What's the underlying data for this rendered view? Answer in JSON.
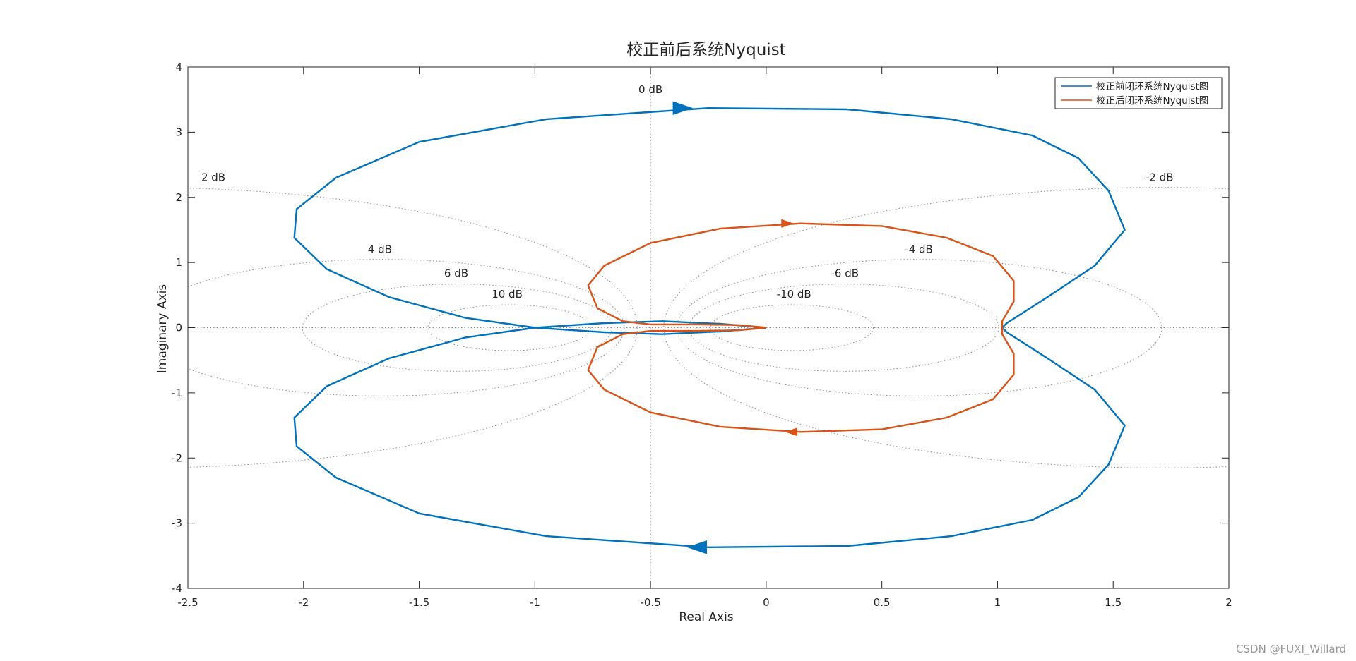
{
  "chart_data": {
    "type": "line",
    "subtype": "nyquist",
    "title": "校正前后系统Nyquist",
    "xlabel": "Real Axis",
    "ylabel": "Imaginary Axis",
    "xlim": [
      -2.5,
      2
    ],
    "ylim": [
      -4,
      4
    ],
    "xticks": [
      -2.5,
      -2,
      -1.5,
      -1,
      -0.5,
      0,
      0.5,
      1,
      1.5,
      2
    ],
    "xtick_labels": [
      "-2.5",
      "-2",
      "-1.5",
      "-1",
      "-0.5",
      "0",
      "0.5",
      "1",
      "1.5",
      "2"
    ],
    "yticks": [
      -4,
      -3,
      -2,
      -1,
      0,
      1,
      2,
      3,
      4
    ],
    "ytick_labels": [
      "-4",
      "-3",
      "-2",
      "-1",
      "0",
      "1",
      "2",
      "3",
      "4"
    ],
    "grid": "M-circles",
    "legend_position": "top-right",
    "m_circle_labels": [
      {
        "text": "0 dB",
        "db": 0,
        "x": -0.5,
        "y": 3.6
      },
      {
        "text": "2 dB",
        "db": 2,
        "x": -2.39,
        "y": 2.25
      },
      {
        "text": "-2 dB",
        "db": -2,
        "x": 1.7,
        "y": 2.25
      },
      {
        "text": "4 dB",
        "db": 4,
        "x": -1.67,
        "y": 1.15
      },
      {
        "text": "-4 dB",
        "db": -4,
        "x": 0.66,
        "y": 1.15
      },
      {
        "text": "6 dB",
        "db": 6,
        "x": -1.34,
        "y": 0.78
      },
      {
        "text": "-6 dB",
        "db": -6,
        "x": 0.34,
        "y": 0.78
      },
      {
        "text": "10 dB",
        "db": 10,
        "x": -1.12,
        "y": 0.46
      },
      {
        "text": "-10 dB",
        "db": -10,
        "x": 0.12,
        "y": 0.46
      }
    ],
    "series": [
      {
        "name": "校正前闭环系统Nyquist图",
        "color": "#0072BD",
        "points": [
          [
            0,
            0
          ],
          [
            -0.2,
            0.06
          ],
          [
            -0.45,
            0.1
          ],
          [
            -0.7,
            0.07
          ],
          [
            -1.0,
            0.0
          ],
          [
            -1.3,
            -0.15
          ],
          [
            -1.63,
            -0.47
          ],
          [
            -1.9,
            -0.9
          ],
          [
            -2.04,
            -1.38
          ],
          [
            -2.03,
            -1.82
          ],
          [
            -1.86,
            -2.3
          ],
          [
            -1.5,
            -2.85
          ],
          [
            -0.95,
            -3.2
          ],
          [
            -0.25,
            -3.37
          ],
          [
            0.35,
            -3.35
          ],
          [
            0.8,
            -3.2
          ],
          [
            1.15,
            -2.95
          ],
          [
            1.35,
            -2.6
          ],
          [
            1.48,
            -2.1
          ],
          [
            1.55,
            -1.5
          ],
          [
            1.42,
            -0.95
          ],
          [
            1.22,
            -0.48
          ],
          [
            1.04,
            -0.07
          ],
          [
            1.02,
            0.0
          ],
          [
            1.04,
            0.07
          ],
          [
            1.22,
            0.48
          ],
          [
            1.42,
            0.95
          ],
          [
            1.55,
            1.5
          ],
          [
            1.48,
            2.1
          ],
          [
            1.35,
            2.6
          ],
          [
            1.15,
            2.95
          ],
          [
            0.8,
            3.2
          ],
          [
            0.35,
            3.35
          ],
          [
            -0.25,
            3.37
          ],
          [
            -0.95,
            3.2
          ],
          [
            -1.5,
            2.85
          ],
          [
            -1.86,
            2.3
          ],
          [
            -2.03,
            1.82
          ],
          [
            -2.04,
            1.38
          ],
          [
            -1.9,
            0.9
          ],
          [
            -1.63,
            0.47
          ],
          [
            -1.3,
            0.15
          ],
          [
            -1.0,
            0.0
          ],
          [
            -0.7,
            -0.07
          ],
          [
            -0.45,
            -0.1
          ],
          [
            -0.2,
            -0.06
          ],
          [
            0,
            0
          ]
        ],
        "arrows": [
          {
            "x": -0.38,
            "y": 3.37,
            "direction": "right"
          },
          {
            "x": -0.28,
            "y": -3.37,
            "direction": "left"
          }
        ]
      },
      {
        "name": "校正后闭环系统Nyquist图",
        "color": "#D95319",
        "points": [
          [
            0,
            0
          ],
          [
            -0.12,
            -0.04
          ],
          [
            -0.3,
            -0.05
          ],
          [
            -0.5,
            -0.05
          ],
          [
            -0.62,
            -0.1
          ],
          [
            -0.73,
            -0.3
          ],
          [
            -0.77,
            -0.65
          ],
          [
            -0.7,
            -0.95
          ],
          [
            -0.5,
            -1.3
          ],
          [
            -0.2,
            -1.52
          ],
          [
            0.15,
            -1.6
          ],
          [
            0.5,
            -1.56
          ],
          [
            0.78,
            -1.38
          ],
          [
            0.98,
            -1.1
          ],
          [
            1.07,
            -0.72
          ],
          [
            1.07,
            -0.4
          ],
          [
            1.02,
            -0.1
          ],
          [
            1.02,
            0.1
          ],
          [
            1.07,
            0.4
          ],
          [
            1.07,
            0.72
          ],
          [
            0.98,
            1.1
          ],
          [
            0.78,
            1.38
          ],
          [
            0.5,
            1.56
          ],
          [
            0.15,
            1.6
          ],
          [
            -0.2,
            1.52
          ],
          [
            -0.5,
            1.3
          ],
          [
            -0.7,
            0.95
          ],
          [
            -0.77,
            0.65
          ],
          [
            -0.73,
            0.3
          ],
          [
            -0.62,
            0.1
          ],
          [
            -0.5,
            0.05
          ],
          [
            -0.3,
            0.05
          ],
          [
            -0.12,
            0.04
          ],
          [
            0,
            0
          ]
        ],
        "arrows": [
          {
            "x": 0.08,
            "y": 1.6,
            "direction": "right"
          },
          {
            "x": 0.12,
            "y": -1.6,
            "direction": "left"
          }
        ]
      }
    ]
  },
  "watermark": "CSDN @FUXI_Willard"
}
